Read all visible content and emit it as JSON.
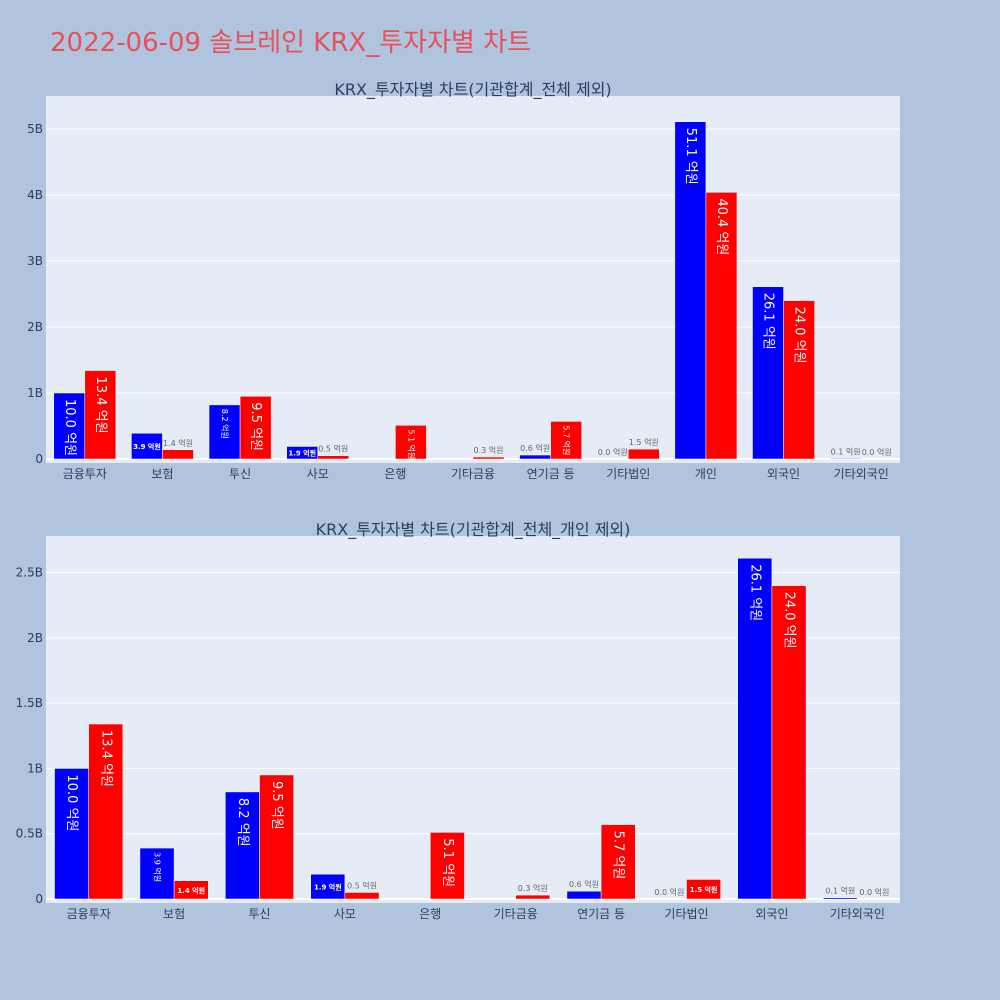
{
  "page": {
    "title": "2022-06-09 솔브레인 KRX_투자자별 차트"
  },
  "colors": {
    "background": "#b0c4de",
    "plot_background": "#e5ecf6",
    "series_buy": "#0000ff",
    "series_sell": "#ff0000",
    "title": "#e8505b",
    "axis_text": "#2a3f5f"
  },
  "chart_data": [
    {
      "type": "bar",
      "title": "KRX_투자자별 차트(기관합계_전체 제외)",
      "categories": [
        "금융투자",
        "보험",
        "투신",
        "사모",
        "은행",
        "기타금융",
        "연기금 등",
        "기타법인",
        "개인",
        "외국인",
        "기타외국인"
      ],
      "series": [
        {
          "values": [
            1.0,
            0.39,
            0.82,
            0.19,
            0.0,
            0.0,
            0.06,
            0.0,
            5.11,
            2.61,
            0.01
          ],
          "labels": [
            "10.0 억원",
            "3.9 억원",
            "8.2 억원",
            "1.9 억원",
            "",
            "",
            "0.6 억원",
            "0.0 억원",
            "51.1 억원",
            "26.1 억원",
            "0.1 억원"
          ]
        },
        {
          "values": [
            1.34,
            0.14,
            0.95,
            0.05,
            0.51,
            0.03,
            0.57,
            0.15,
            4.04,
            2.4,
            0.0
          ],
          "labels": [
            "13.4 억원",
            "1.4 억원",
            "9.5 억원",
            "0.5 억원",
            "5.1 억원",
            "0.3 억원",
            "5.7 억원",
            "1.5 억원",
            "40.4 억원",
            "24.0 억원",
            "0.0 억원"
          ]
        }
      ],
      "yticks": [
        0,
        1,
        2,
        3,
        4,
        5
      ],
      "ytick_labels": [
        "0",
        "1B",
        "2B",
        "3B",
        "4B",
        "5B"
      ],
      "ylim": [
        0,
        5.5
      ],
      "grid": true,
      "legend": "none"
    },
    {
      "type": "bar",
      "title": "KRX_투자자별 차트(기관합계_전체_개인 제외)",
      "categories": [
        "금융투자",
        "보험",
        "투신",
        "사모",
        "은행",
        "기타금융",
        "연기금 등",
        "기타법인",
        "외국인",
        "기타외국인"
      ],
      "series": [
        {
          "values": [
            1.0,
            0.39,
            0.82,
            0.19,
            0.0,
            0.0,
            0.06,
            0.0,
            2.61,
            0.01
          ],
          "labels": [
            "10.0 억원",
            "3.9 억원",
            "8.2 억원",
            "1.9 억원",
            "",
            "",
            "0.6 억원",
            "0.0 억원",
            "26.1 억원",
            "0.1 억원"
          ]
        },
        {
          "values": [
            1.34,
            0.14,
            0.95,
            0.05,
            0.51,
            0.03,
            0.57,
            0.15,
            2.4,
            0.0
          ],
          "labels": [
            "13.4 억원",
            "1.4 억원",
            "9.5 억원",
            "0.5 억원",
            "5.1 억원",
            "0.3 억원",
            "5.7 억원",
            "1.5 억원",
            "24.0 억원",
            "0.0 억원"
          ]
        }
      ],
      "yticks": [
        0,
        0.5,
        1,
        1.5,
        2,
        2.5
      ],
      "ytick_labels": [
        "0",
        "0.5B",
        "1B",
        "1.5B",
        "2B",
        "2.5B"
      ],
      "ylim": [
        0,
        2.78
      ],
      "grid": true,
      "legend": "none"
    }
  ]
}
